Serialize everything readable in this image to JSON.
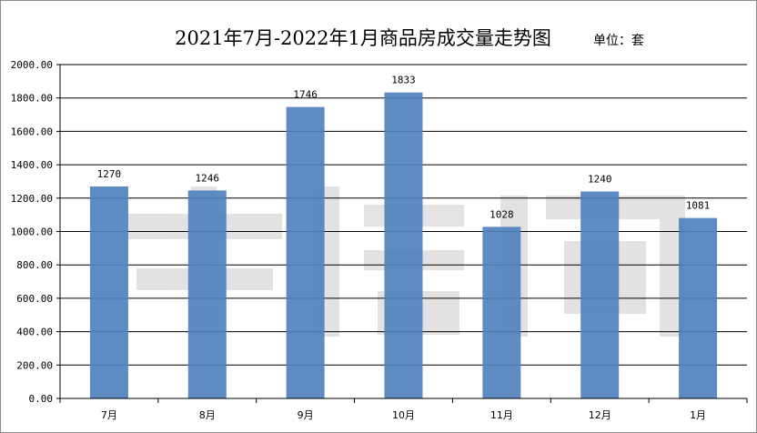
{
  "chart_data": {
    "type": "bar",
    "title": "2021年7月-2022年1月商品房成交量走势图",
    "unit_label": "单位：套",
    "categories": [
      "7月",
      "8月",
      "9月",
      "10月",
      "11月",
      "12月",
      "1月"
    ],
    "values": [
      1270,
      1246,
      1746,
      1833,
      1028,
      1240,
      1081
    ],
    "data_labels": [
      "1270",
      "1246",
      "1746",
      "1833",
      "1028",
      "1240",
      "1081"
    ],
    "ylim": [
      0,
      2000
    ],
    "yticks": [
      0,
      200,
      400,
      600,
      800,
      1000,
      1200,
      1400,
      1600,
      1800,
      2000
    ],
    "ytick_labels": [
      "0.00",
      "200.00",
      "400.00",
      "600.00",
      "800.00",
      "1000.00",
      "1200.00",
      "1400.00",
      "1600.00",
      "1800.00",
      "2000.00"
    ],
    "grid": true,
    "bar_color": "#4f81bd",
    "gridline_color": "#000000"
  },
  "watermark": {
    "text": "李信网"
  }
}
